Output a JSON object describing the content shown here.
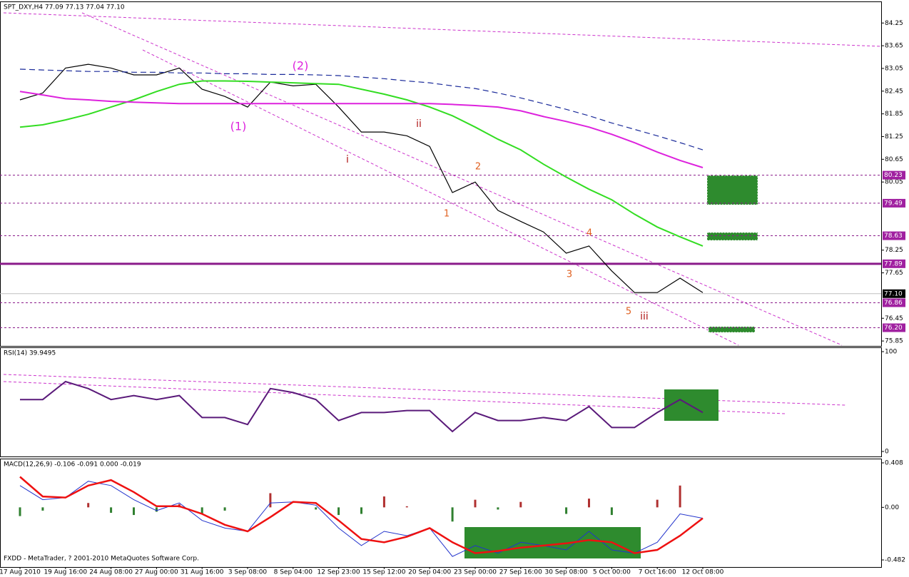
{
  "chart_data": [
    {
      "type": "price",
      "title": "SPT_DXY,H4  77.09 77.13 77.04 77.10",
      "ylim": [
        75.72,
        84.82
      ],
      "yticks": [
        84.25,
        83.65,
        83.05,
        82.45,
        81.85,
        81.25,
        80.65,
        80.05,
        78.25,
        77.65,
        76.45,
        75.85
      ],
      "levels": [
        80.23,
        79.49,
        78.63,
        76.86,
        {
          "value": 76.2,
          "label": "76.20"
        }
      ],
      "key_level": 77.89,
      "last_price": {
        "value": 77.1,
        "label": "77.10"
      },
      "series": [
        {
          "color": "#000000",
          "values": [
            82.22,
            82.4,
            83.06,
            83.16,
            83.06,
            82.88,
            82.88,
            83.06,
            82.5,
            82.31,
            82.03,
            82.69,
            82.59,
            82.63,
            82.03,
            81.37,
            81.37,
            81.27,
            80.99,
            79.77,
            80.05,
            79.3,
            79.01,
            78.73,
            78.17,
            78.36,
            77.7,
            77.13,
            77.13,
            77.51,
            77.13
          ]
        },
        {
          "color": "#33dd22",
          "values": [
            81.5,
            81.56,
            81.69,
            81.84,
            82.03,
            82.22,
            82.44,
            82.63,
            82.72,
            82.72,
            82.71,
            82.69,
            82.67,
            82.65,
            82.63,
            82.5,
            82.37,
            82.22,
            82.03,
            81.8,
            81.5,
            81.18,
            80.9,
            80.52,
            80.18,
            79.86,
            79.58,
            79.2,
            78.86,
            78.6,
            78.36
          ]
        },
        {
          "color": "#dd22dd",
          "values": [
            82.44,
            82.35,
            82.25,
            82.22,
            82.18,
            82.16,
            82.14,
            82.12,
            82.12,
            82.12,
            82.12,
            82.12,
            82.12,
            82.12,
            82.12,
            82.12,
            82.12,
            82.12,
            82.12,
            82.1,
            82.07,
            82.03,
            81.93,
            81.78,
            81.65,
            81.5,
            81.31,
            81.09,
            80.84,
            80.62,
            80.43
          ]
        },
        {
          "color": "#1a2a9a",
          "values": [
            83.03,
            83.01,
            82.99,
            82.97,
            82.97,
            82.95,
            82.95,
            82.93,
            82.93,
            82.91,
            82.91,
            82.89,
            82.89,
            82.88,
            82.86,
            82.82,
            82.78,
            82.72,
            82.67,
            82.59,
            82.52,
            82.4,
            82.27,
            82.12,
            81.97,
            81.8,
            81.61,
            81.44,
            81.27,
            81.09,
            80.9
          ]
        }
      ],
      "annotations": [
        {
          "text": "(1)",
          "color": "#dd22dd"
        },
        {
          "text": "(2)",
          "color": "#dd22dd"
        },
        {
          "text": "i",
          "color": "#b01818"
        },
        {
          "text": "ii",
          "color": "#b01818"
        },
        {
          "text": "1",
          "color": "#e06020"
        },
        {
          "text": "2",
          "color": "#e06020"
        },
        {
          "text": "3",
          "color": "#e06020"
        },
        {
          "text": "4",
          "color": "#e06020"
        },
        {
          "text": "5",
          "color": "#e06020"
        },
        {
          "text": "iii",
          "color": "#b01818"
        }
      ]
    },
    {
      "type": "rsi",
      "title": "RSI(14) 39.9495",
      "ylim": [
        -5,
        104.3
      ],
      "yticks": [
        100,
        0
      ],
      "color": "#5a1a7a",
      "values": [
        52,
        52,
        70,
        63,
        52,
        56,
        52,
        56,
        34,
        34,
        27,
        63,
        59,
        52,
        31,
        39,
        39,
        41,
        41,
        20,
        39,
        31,
        31,
        34,
        31,
        45,
        24,
        24,
        39,
        52,
        39
      ]
    },
    {
      "type": "macd",
      "title": "MACD(12,26,9) -0.106 -0.091 0.000 -0.019",
      "footer": "FXDD - MetaTrader, ? 2001-2010 MetaQuotes Software Corp.",
      "ylim": [
        -0.547,
        0.447
      ],
      "yticks": [
        0.408,
        {
          "value": 0,
          "label": "0.00"
        },
        -0.482
      ],
      "categories": [
        "17 Aug 2010",
        null,
        "19 Aug 16:00",
        null,
        "24 Aug 08:00",
        null,
        "27 Aug 00:00",
        null,
        "31 Aug 16:00",
        null,
        "3 Sep 08:00",
        null,
        "8 Sep 04:00",
        null,
        "12 Sep 23:00",
        null,
        "15 Sep 12:00",
        null,
        "20 Sep 04:00",
        null,
        "23 Sep 00:00",
        null,
        "27 Sep 16:00",
        null,
        "30 Sep 08:00",
        null,
        "5 Oct 00:00",
        null,
        "7 Oct 16:00",
        null,
        "12 Oct 08:00"
      ],
      "histogram": [
        -0.08,
        -0.03,
        0,
        0.04,
        -0.05,
        -0.07,
        -0.04,
        0.03,
        -0.06,
        -0.03,
        0,
        0.13,
        0,
        -0.02,
        -0.07,
        -0.06,
        0.1,
        0.01,
        0,
        -0.13,
        0.07,
        -0.02,
        0.05,
        0,
        -0.06,
        0.08,
        -0.07,
        0,
        0.07,
        0.2,
        0
      ],
      "series": [
        {
          "color": "#2233cc",
          "values": [
            0.2,
            0.07,
            0.09,
            0.24,
            0.2,
            0.07,
            -0.03,
            0.04,
            -0.12,
            -0.19,
            -0.22,
            0.04,
            0.05,
            0.02,
            -0.19,
            -0.35,
            -0.22,
            -0.26,
            -0.19,
            -0.45,
            -0.35,
            -0.42,
            -0.32,
            -0.35,
            -0.39,
            -0.22,
            -0.39,
            -0.42,
            -0.32,
            -0.06,
            -0.1
          ]
        },
        {
          "color": "#ee1111",
          "values": [
            0.28,
            0.1,
            0.09,
            0.2,
            0.25,
            0.14,
            0.01,
            0.01,
            -0.06,
            -0.16,
            -0.22,
            -0.09,
            0.05,
            0.04,
            -0.12,
            -0.29,
            -0.32,
            -0.27,
            -0.19,
            -0.32,
            -0.42,
            -0.4,
            -0.37,
            -0.35,
            -0.33,
            -0.3,
            -0.32,
            -0.42,
            -0.39,
            -0.26,
            -0.1
          ]
        }
      ]
    }
  ]
}
